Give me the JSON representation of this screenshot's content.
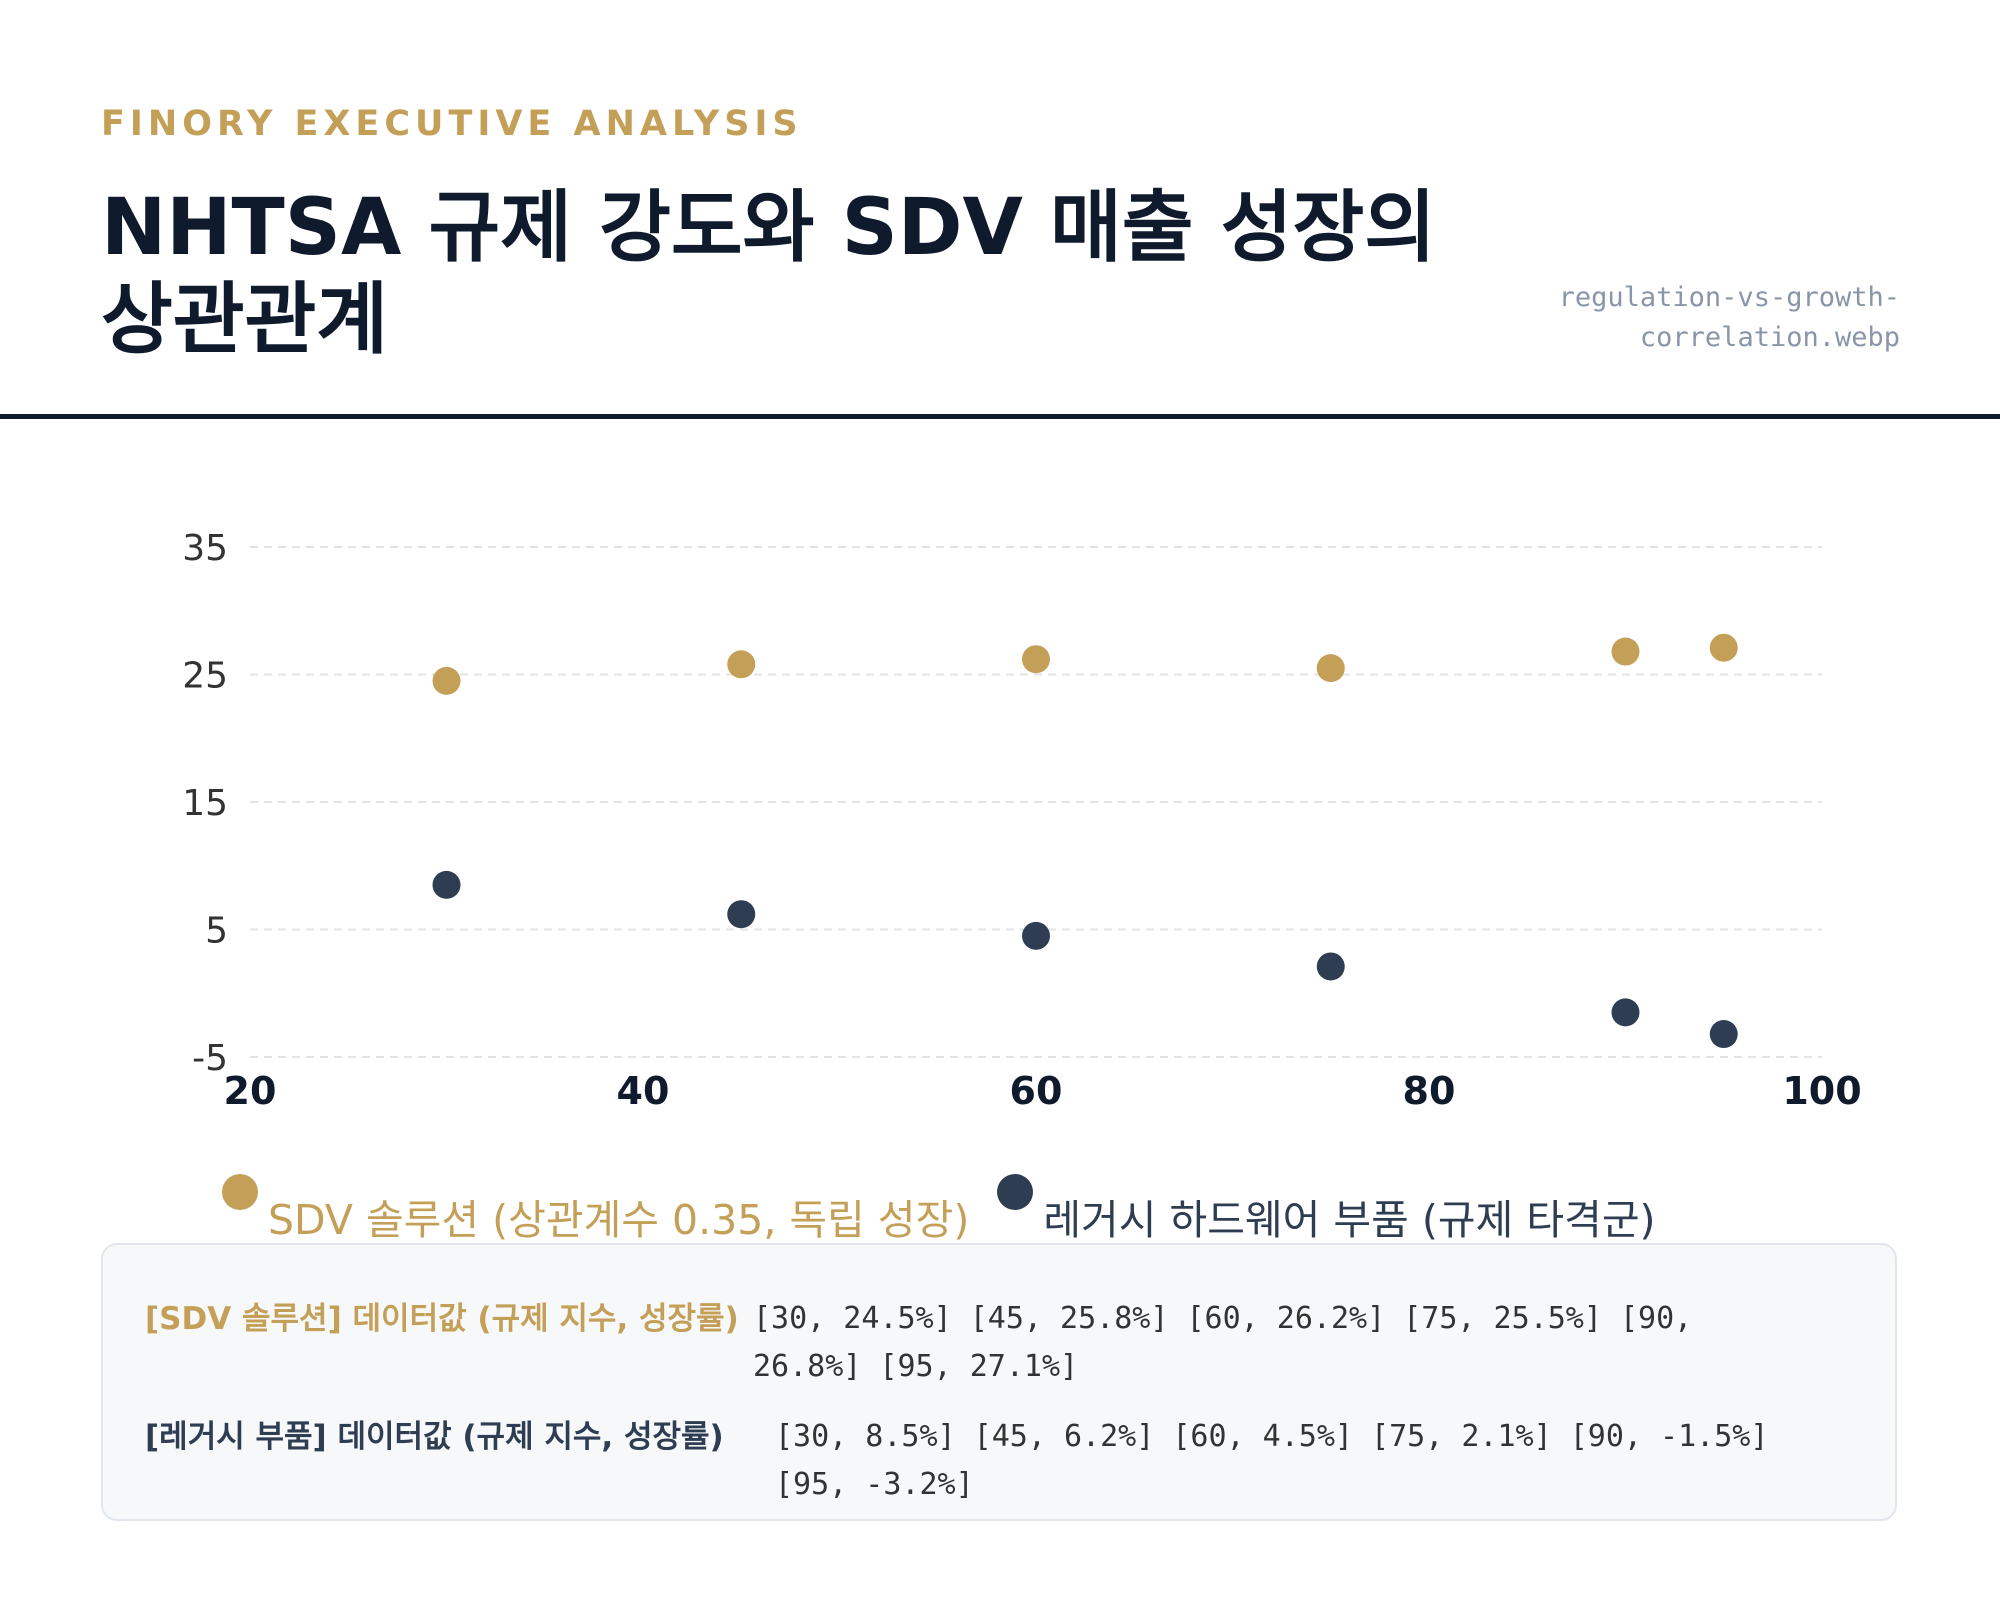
{
  "header": {
    "kicker": "FINORY EXECUTIVE ANALYSIS",
    "title": "NHTSA 규제 강도와 SDV 매출 성장의 상관관계",
    "filename": "regulation-vs-growth-correlation.webp"
  },
  "colors": {
    "gold": "#c49f58",
    "navy": "#2e3d52",
    "ink": "#0f1b2d",
    "grid": "#e3e3e3"
  },
  "chart_data": {
    "type": "scatter",
    "title": "NHTSA 규제 강도와 SDV 매출 성장의 상관관계",
    "xlim": [
      20,
      100
    ],
    "ylim": [
      -5,
      35
    ],
    "x_ticks": [
      "20",
      "40",
      "60",
      "80",
      "100"
    ],
    "y_ticks": [
      "-5",
      "5",
      "15",
      "25",
      "35"
    ],
    "grid": "horizontal dashed",
    "legend_position": "bottom",
    "series": [
      {
        "name": "SDV 솔루션 (상관계수 0.35, 독립 성장)",
        "color": "#c49f58",
        "points": [
          [
            30,
            24.5
          ],
          [
            45,
            25.8
          ],
          [
            60,
            26.2
          ],
          [
            75,
            25.5
          ],
          [
            90,
            26.8
          ],
          [
            95,
            27.1
          ]
        ]
      },
      {
        "name": "레거시 하드웨어 부품 (규제 타격군)",
        "color": "#2e3d52",
        "points": [
          [
            30,
            8.5
          ],
          [
            45,
            6.2
          ],
          [
            60,
            4.5
          ],
          [
            75,
            2.1
          ],
          [
            90,
            -1.5
          ],
          [
            95,
            -3.2
          ]
        ]
      }
    ]
  },
  "data_table": {
    "rows": [
      {
        "label": "[SDV 솔루션] 데이터값 (규제 지수, 성장률)",
        "values": "[30, 24.5%] [45, 25.8%] [60, 26.2%] [75, 25.5%] [90, 26.8%] [95, 27.1%]"
      },
      {
        "label": "[레거시 부품] 데이터값 (규제 지수, 성장률)",
        "values": "[30, 8.5%] [45, 6.2%] [60, 4.5%] [75, 2.1%] [90, -1.5%] [95, -3.2%]"
      }
    ]
  }
}
